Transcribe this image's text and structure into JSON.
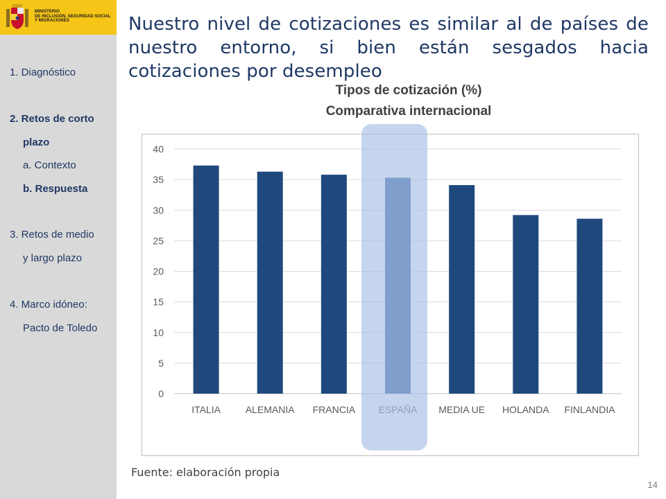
{
  "logo": {
    "lines": [
      "MINISTERIO",
      "DE INCLUSIÓN, SEGURIDAD SOCIAL",
      "Y MIGRACIONES"
    ]
  },
  "sidebar": {
    "items": [
      {
        "label": "1. Diagnóstico",
        "bold": false
      },
      {
        "label": "2. Retos de corto",
        "bold": true
      },
      {
        "label": "plazo",
        "bold": true
      },
      {
        "label": "a. Contexto",
        "bold": false
      },
      {
        "label": "b. Respuesta",
        "bold": true
      },
      {
        "label": "3. Retos de medio",
        "bold": false
      },
      {
        "label": "y largo plazo",
        "bold": false
      },
      {
        "label": "4. Marco idóneo:",
        "bold": false
      },
      {
        "label": "Pacto de Toledo",
        "bold": false
      }
    ]
  },
  "slide": {
    "title": "Nuestro nivel de cotizaciones es similar al de países de nuestro entorno, si bien están sesgados hacia cotizaciones por desempleo",
    "source": "Fuente: elaboración propia",
    "page_number": "14"
  },
  "colors": {
    "bar": "#1f497d",
    "bar_highlight": "#2a5592",
    "highlight_band": "#aac1e6",
    "sidebar_bg": "#d9d9d9",
    "text_dark_blue": "#1f3864"
  },
  "chart_data": {
    "type": "bar",
    "title": "Tipos de cotización (%)",
    "subtitle": "Comparativa internacional",
    "categories": [
      "ITALIA",
      "ALEMANIA",
      "FRANCIA",
      "ESPAÑA",
      "MEDIA UE",
      "HOLANDA",
      "FINLANDIA"
    ],
    "values": [
      37.3,
      36.3,
      35.8,
      35.3,
      34.1,
      29.2,
      28.6
    ],
    "yticks": [
      0,
      5,
      10,
      15,
      20,
      25,
      30,
      35,
      40
    ],
    "ylim": [
      0,
      40
    ],
    "highlight_category": "ESPAÑA",
    "grid": true,
    "legend": "none"
  }
}
